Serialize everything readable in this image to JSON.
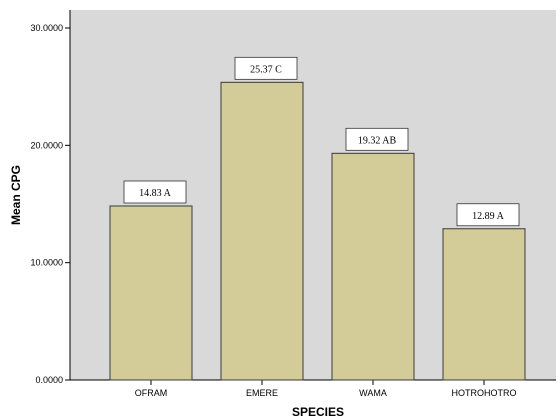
{
  "chart_data": {
    "type": "bar",
    "categories": [
      "OFRAM",
      "EMERE",
      "WAMA",
      "HOTROHOTRO"
    ],
    "values": [
      14.83,
      25.37,
      19.32,
      12.89
    ],
    "data_labels": [
      "14.83 A",
      "25.37 C",
      "19.32  AB",
      "12.89 A"
    ],
    "xlabel": "SPECIES",
    "ylabel": "Mean CPG",
    "ylim": [
      0,
      30
    ],
    "y_ticks": [
      0,
      10,
      20,
      30
    ],
    "y_tick_labels": [
      "0.0000",
      "10.0000",
      "20.0000",
      "30.0000"
    ],
    "grid": false,
    "legend": "none"
  },
  "colors": {
    "plot_background": "#d9d9d9",
    "bar_fill": "#d3cc98",
    "bar_stroke": "#3a3a3a",
    "label_box_fill": "#ffffff"
  }
}
